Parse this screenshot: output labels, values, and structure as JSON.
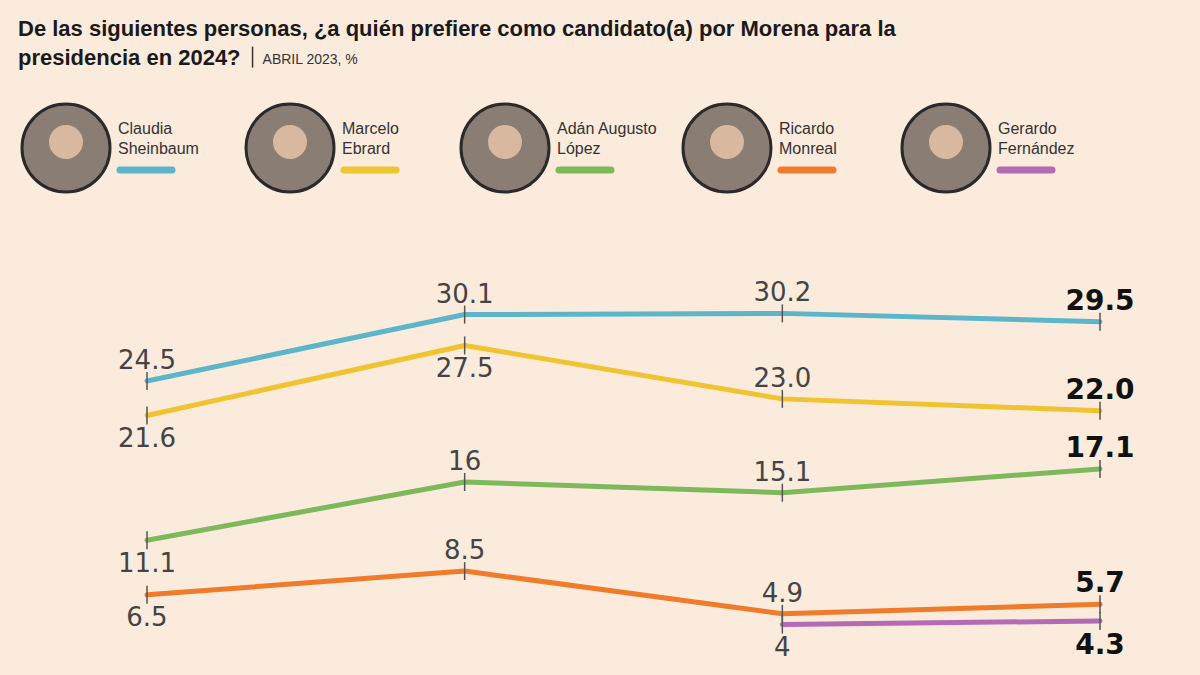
{
  "chart_data": {
    "type": "line",
    "title": "De las siguientes personas, ¿a quién prefiere como candidato(a) por Morena para la presidencia en 2024?",
    "subtitle": "ABRIL 2023, %",
    "categories": [
      null,
      null,
      null,
      null
    ],
    "series": [
      {
        "name": "Claudia Sheinbaum",
        "color": "#5cb5c9",
        "values": [
          24.5,
          30.1,
          30.2,
          29.5
        ]
      },
      {
        "name": "Marcelo Ebrard",
        "color": "#f0c331",
        "values": [
          21.6,
          27.5,
          23.0,
          22.0
        ],
        "value_labels": [
          "21.6",
          "27.5",
          "23.0",
          "22.0"
        ]
      },
      {
        "name": "Adán Augusto López",
        "color": "#7db85b",
        "values": [
          11.1,
          16.0,
          15.1,
          17.1
        ]
      },
      {
        "name": "Ricardo Monreal",
        "color": "#ef7b2b",
        "values": [
          6.5,
          8.5,
          4.9,
          5.7
        ]
      },
      {
        "name": "Gerardo Fernández",
        "color": "#b46ab4",
        "values": [
          null,
          null,
          4.0,
          4.3
        ]
      }
    ],
    "ylim": [
      0,
      32
    ],
    "tick_labels": false,
    "grid": false,
    "legend": "top",
    "data_labels": true,
    "marker": "tick"
  }
}
